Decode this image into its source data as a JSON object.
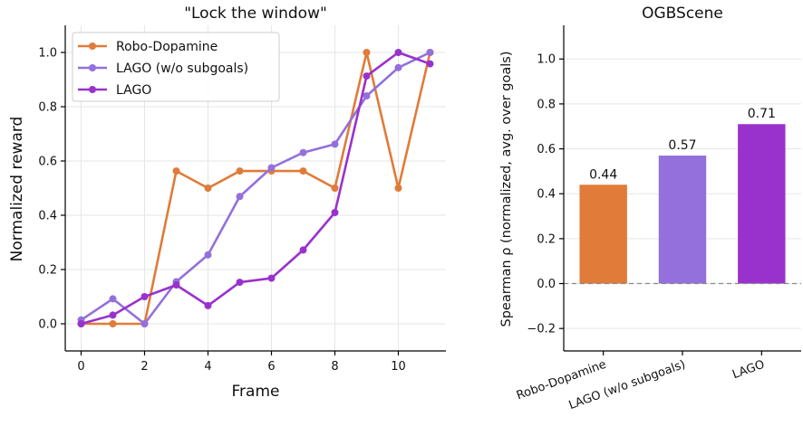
{
  "chart_data": [
    {
      "type": "line",
      "title": "\"Lock the window\"",
      "xlabel": "Frame",
      "ylabel": "Normalized reward",
      "xlim": [
        -0.5,
        11.5
      ],
      "ylim": [
        -0.1,
        1.1
      ],
      "xticks": [
        "0",
        "2",
        "4",
        "6",
        "8",
        "10"
      ],
      "yticks": [
        "0.0",
        "0.2",
        "0.4",
        "0.6",
        "0.8",
        "1.0"
      ],
      "grid": true,
      "legend_position": "top-left",
      "x": [
        0,
        1,
        2,
        3,
        4,
        5,
        6,
        7,
        8,
        9,
        10,
        11
      ],
      "series": [
        {
          "name": "Robo-Dopamine",
          "color": "#E07B39",
          "values": [
            0.0,
            0.0,
            0.0,
            0.563,
            0.5,
            0.563,
            0.563,
            0.563,
            0.5,
            1.0,
            0.5,
            1.0
          ]
        },
        {
          "name": "LAGO (w/o subgoals)",
          "color": "#9370DB",
          "values": [
            0.014,
            0.092,
            0.0,
            0.155,
            0.254,
            0.469,
            0.575,
            0.631,
            0.662,
            0.84,
            0.944,
            1.0
          ]
        },
        {
          "name": "LAGO",
          "color": "#9932CC",
          "values": [
            0.0,
            0.032,
            0.1,
            0.143,
            0.067,
            0.153,
            0.168,
            0.272,
            0.41,
            0.913,
            1.0,
            0.958
          ]
        }
      ]
    },
    {
      "type": "bar",
      "title": "OGBScene",
      "xlabel": "",
      "ylabel": "Spearman ρ (normalized, avg. over goals)",
      "ylim": [
        -0.3,
        1.15
      ],
      "yticks": [
        "−0.2",
        "0.0",
        "0.2",
        "0.4",
        "0.6",
        "0.8",
        "1.0"
      ],
      "grid": true,
      "zero_line": true,
      "categories": [
        "Robo-Dopamine",
        "LAGO (w/o subgoals)",
        "LAGO"
      ],
      "values": [
        0.44,
        0.57,
        0.71
      ],
      "value_labels": [
        "0.44",
        "0.57",
        "0.71"
      ],
      "colors": [
        "#E07B39",
        "#9370DB",
        "#9932CC"
      ]
    }
  ]
}
